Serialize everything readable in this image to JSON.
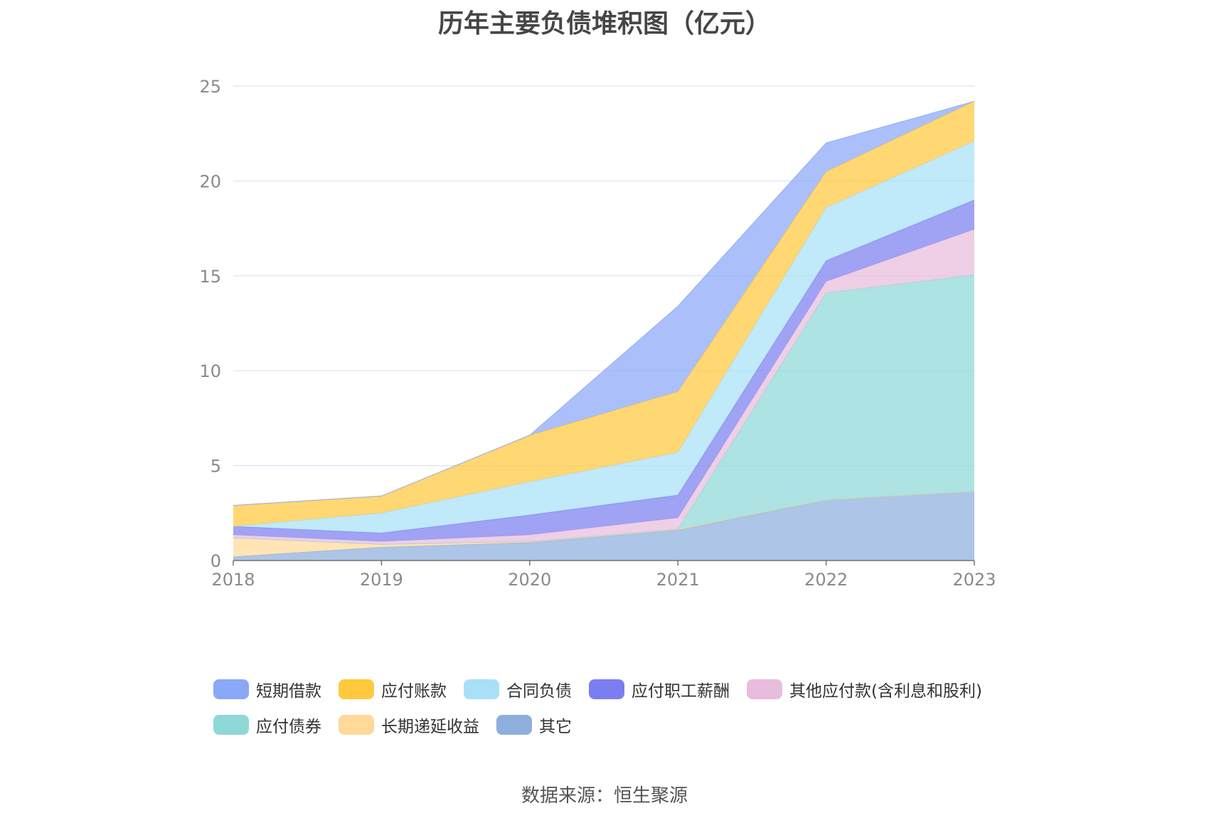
{
  "chart_data": {
    "type": "area",
    "stacked": true,
    "title": "历年主要负债堆积图（亿元）",
    "xlabel": "",
    "ylabel": "",
    "categories": [
      "2018",
      "2019",
      "2020",
      "2021",
      "2022",
      "2023"
    ],
    "ylim": [
      0,
      25
    ],
    "yticks": [
      0,
      5,
      10,
      15,
      20,
      25
    ],
    "grid": true,
    "legend_position": "bottom",
    "series": [
      {
        "name": "其它",
        "color": "#8eaedc",
        "values": [
          0.2,
          0.7,
          0.95,
          1.6,
          3.2,
          3.65
        ]
      },
      {
        "name": "长期递延收益",
        "color": "#ffd99a",
        "values": [
          1.0,
          0.15,
          0.05,
          0.05,
          0.0,
          0.0
        ]
      },
      {
        "name": "应付债券",
        "color": "#8fd8d8",
        "values": [
          0.0,
          0.0,
          0.0,
          0.0,
          10.9,
          11.4
        ]
      },
      {
        "name": "其他应付款(含利息和股利)",
        "color": "#e8bcdc",
        "values": [
          0.15,
          0.15,
          0.35,
          0.6,
          0.6,
          2.4
        ]
      },
      {
        "name": "应付职工薪酬",
        "color": "#7b7ef0",
        "values": [
          0.45,
          0.45,
          1.05,
          1.2,
          1.1,
          1.55
        ]
      },
      {
        "name": "合同负债",
        "color": "#a8e0f8",
        "values": [
          0.0,
          1.05,
          1.75,
          2.25,
          2.8,
          3.1
        ]
      },
      {
        "name": "应付账款",
        "color": "#ffc83d",
        "values": [
          1.1,
          0.9,
          2.45,
          3.2,
          1.9,
          2.1
        ]
      },
      {
        "name": "短期借款",
        "color": "#8aa8f8",
        "values": [
          0.0,
          0.0,
          0.0,
          4.5,
          1.5,
          0.0
        ]
      }
    ]
  },
  "legend": {
    "items": [
      {
        "label": "短期借款",
        "color": "#8aa8f8"
      },
      {
        "label": "应付账款",
        "color": "#ffc83d"
      },
      {
        "label": "合同负债",
        "color": "#a8e0f8"
      },
      {
        "label": "应付职工薪酬",
        "color": "#7b7ef0"
      },
      {
        "label": "其他应付款(含利息和股利)",
        "color": "#e8bcdc"
      },
      {
        "label": "应付债券",
        "color": "#8fd8d8"
      },
      {
        "label": "长期递延收益",
        "color": "#ffd99a"
      },
      {
        "label": "其它",
        "color": "#8eaedc"
      }
    ]
  },
  "source": "数据来源：恒生聚源"
}
